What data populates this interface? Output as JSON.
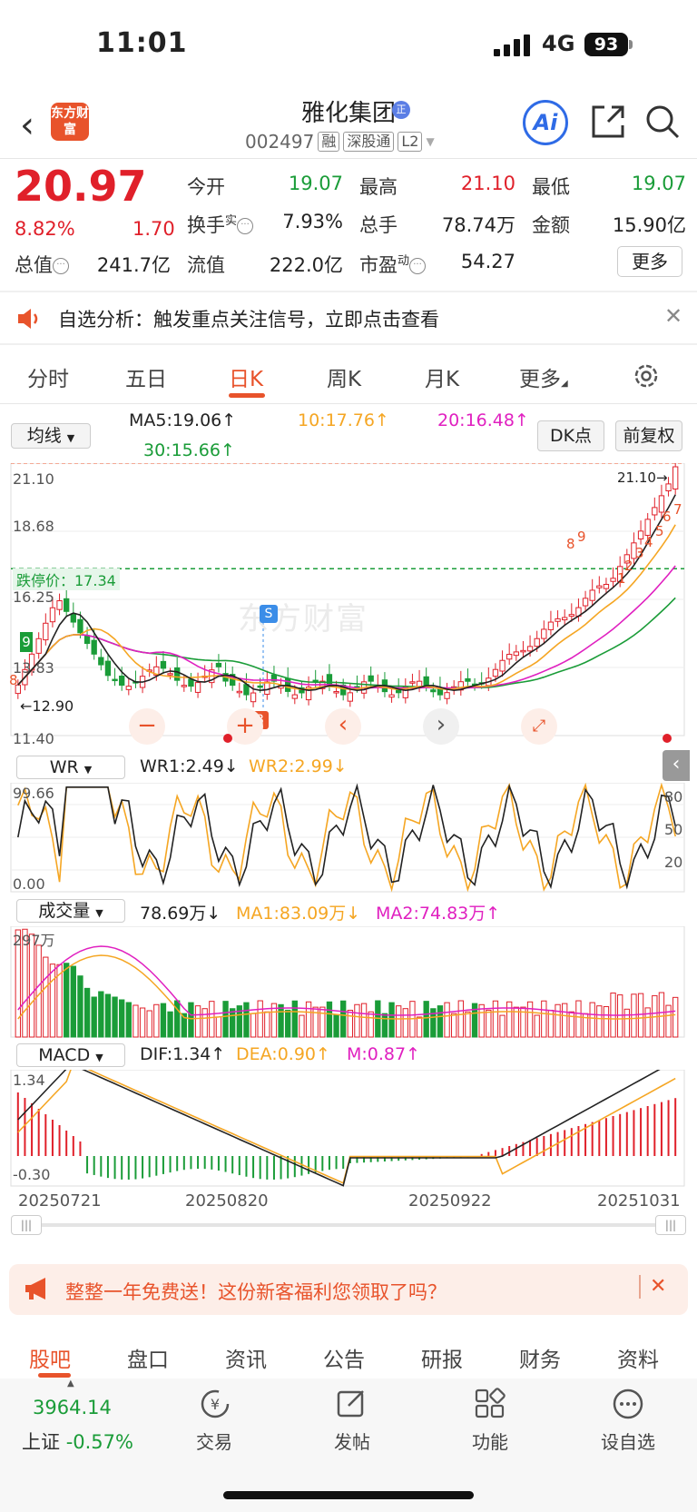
{
  "status": {
    "time": "11:01",
    "network": "4G",
    "battery": "93"
  },
  "header": {
    "logo_text": "东方财富",
    "name": "雅化集团",
    "name_badge": "正",
    "code": "002497",
    "tags": [
      "融",
      "深股通",
      "L2"
    ],
    "ai_label": "Ai"
  },
  "quote": {
    "price": "20.97",
    "pct": "8.82%",
    "change": "1.70",
    "open_label": "今开",
    "open": "19.07",
    "high_label": "最高",
    "high": "21.10",
    "low_label": "最低",
    "low": "19.07",
    "turnover_label": "换手",
    "turnover_sup": "实",
    "turnover": "7.93%",
    "volume_label": "总手",
    "volume": "78.74万",
    "amount_label": "金额",
    "amount": "15.90亿",
    "mcap_label": "总值",
    "mcap": "241.7亿",
    "float_label": "流值",
    "float": "222.0亿",
    "pe_label": "市盈",
    "pe_sup": "动",
    "pe": "54.27",
    "more": "更多"
  },
  "banner": {
    "text": "自选分析：触发重点关注信号，立即点击查看"
  },
  "tabs": [
    "分时",
    "五日",
    "日K",
    "周K",
    "月K",
    "更多"
  ],
  "active_tab": "日K",
  "kline": {
    "indicator_select": "均线",
    "ma5": "MA5:19.06↑",
    "ma10": "10:17.76↑",
    "ma20": "20:16.48↑",
    "ma30": "30:15.66↑",
    "dk_btn": "DK点",
    "adj_btn": "前复权",
    "y_top": "21.10",
    "y_2": "18.68",
    "y_3": "16.25",
    "y_4": "13.83",
    "y_bottom": "11.40",
    "limit_label": "跌停价：17.34",
    "high_marker": "21.10→",
    "low_marker": "←12.90",
    "watermark": "东方财富",
    "s_mark": "S",
    "b_mark": "B",
    "td_nums_up": [
      "1",
      "2",
      "3",
      "4",
      "5",
      "6",
      "7",
      "8",
      "9"
    ],
    "td_left": "9",
    "td_left2": "8"
  },
  "wr": {
    "select": "WR",
    "wr1": "WR1:2.49↓",
    "wr2": "WR2:2.99↓",
    "y_top": "99.66",
    "y_bottom": "0.00",
    "r80": "80",
    "r50": "50",
    "r20": "20"
  },
  "vol": {
    "select": "成交量",
    "val": "78.69万↓",
    "ma1": "MA1:83.09万↓",
    "ma2": "MA2:74.83万↑",
    "y_top": "297万"
  },
  "macd": {
    "select": "MACD",
    "dif": "DIF:1.34↑",
    "dea": "DEA:0.90↑",
    "m": "M:0.87↑",
    "y_top": "1.34",
    "y_bottom": "-0.30"
  },
  "dates": [
    "20250721",
    "20250820",
    "20250922",
    "20251031"
  ],
  "promo": {
    "text": "整整一年免费送！这份新客福利您领取了吗？"
  },
  "bottom_tabs": [
    "股吧",
    "盘口",
    "资讯",
    "公告",
    "研报",
    "财务",
    "资料"
  ],
  "nav": {
    "index_value": "3964.14",
    "index_label": "上证",
    "index_pct": "-0.57%",
    "items": [
      "交易",
      "发帖",
      "功能",
      "设自选"
    ]
  },
  "colors": {
    "up": "#e0202a",
    "down": "#1a9c38",
    "accent": "#e8532b",
    "ma5": "#222222",
    "ma10": "#f5a623",
    "ma20": "#e020c0",
    "ma30": "#1a9c38"
  }
}
